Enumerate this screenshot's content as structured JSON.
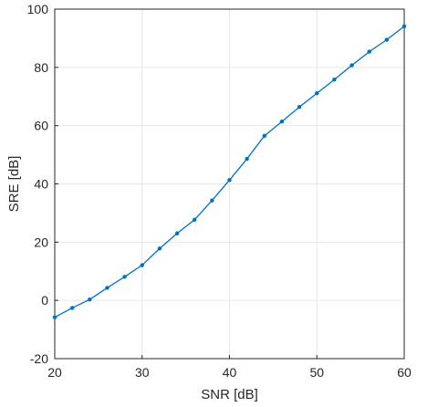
{
  "chart_data": {
    "type": "line",
    "title": "",
    "xlabel": "SNR [dB]",
    "ylabel": "SRE [dB]",
    "xlim": [
      20,
      60
    ],
    "ylim": [
      -20,
      100
    ],
    "xticks": [
      20,
      30,
      40,
      50,
      60
    ],
    "yticks": [
      -20,
      0,
      20,
      40,
      60,
      80,
      100
    ],
    "grid": true,
    "legend": "none",
    "line_color": "#0072BD",
    "series": [
      {
        "x": [
          20,
          22,
          24,
          26,
          28,
          30,
          32,
          34,
          36,
          38,
          40,
          42,
          44,
          46,
          48,
          50,
          52,
          54,
          56,
          58,
          60
        ],
        "y": [
          -5.8,
          -2.6,
          0.3,
          4.3,
          8.1,
          12.1,
          17.8,
          23.0,
          27.7,
          34.3,
          41.3,
          48.6,
          56.5,
          61.4,
          66.4,
          71.1,
          75.8,
          80.7,
          85.4,
          89.5,
          94.1
        ]
      }
    ]
  }
}
